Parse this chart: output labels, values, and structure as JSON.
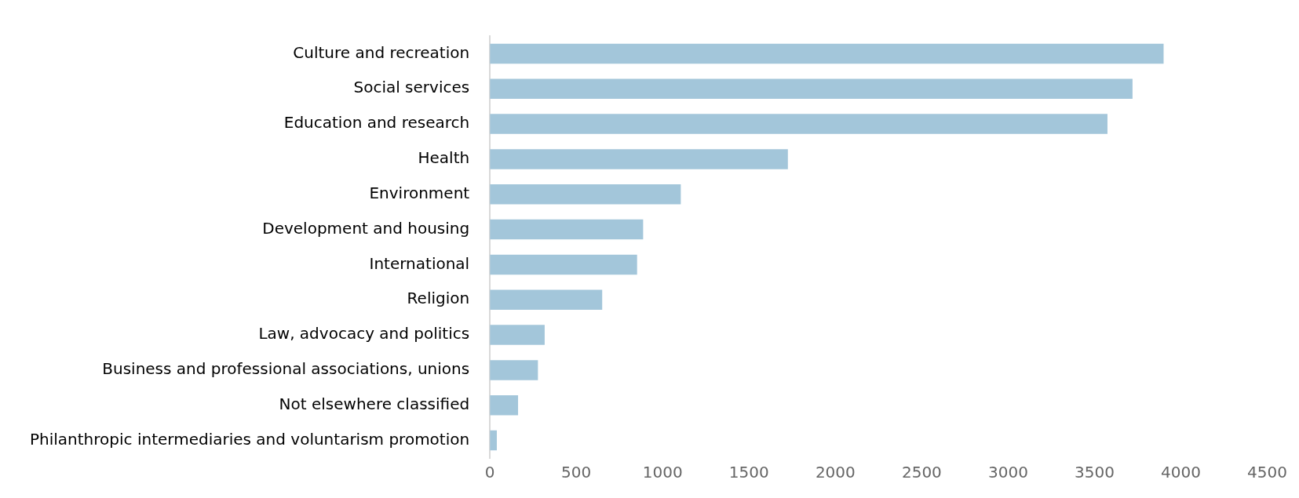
{
  "chart_data": {
    "type": "bar",
    "orientation": "horizontal",
    "categories": [
      "Culture and recreation",
      "Social services",
      "Education and research",
      "Health",
      "Environment",
      "Development and housing",
      "International",
      "Religion",
      "Law, advocacy and politics",
      "Business and professional associations, unions",
      "Not elsewhere classified",
      "Philanthropic intermediaries and voluntarism promotion"
    ],
    "values": [
      3900,
      3720,
      3575,
      1725,
      1105,
      887,
      852,
      650,
      317,
      278,
      163,
      40
    ],
    "color": "#a3c6da",
    "xlim": [
      0,
      4500
    ],
    "xticks": [
      0,
      500,
      1000,
      1500,
      2000,
      2500,
      3000,
      3500,
      4000,
      4500
    ],
    "grid": false,
    "legend": false
  }
}
